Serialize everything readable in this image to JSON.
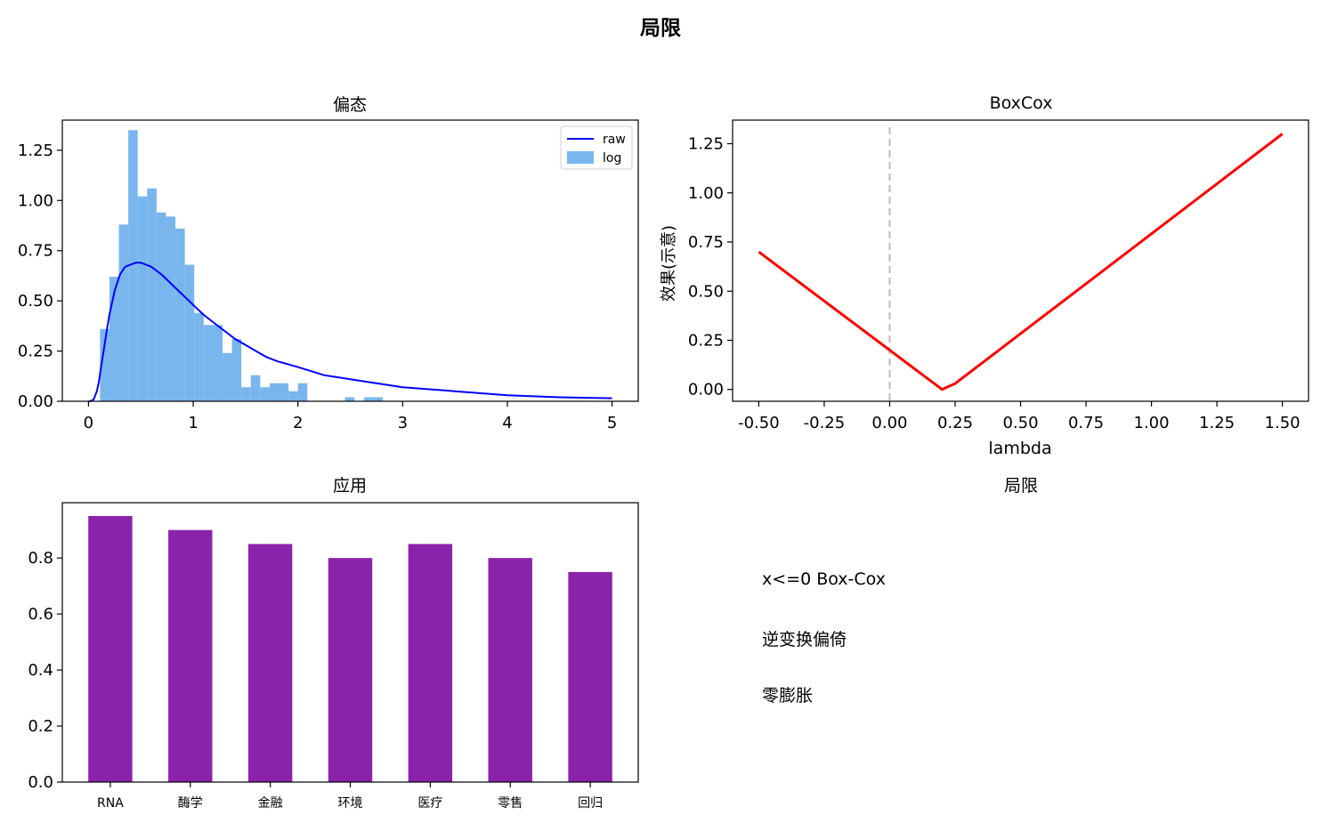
{
  "suptitle": "局限",
  "colors": {
    "hist": "#7ab6ee",
    "curve": "#0000ff",
    "boxcox": "#ff0000",
    "vline": "#bbbbbb",
    "bars": "#8b22ab"
  },
  "chart_data": [
    {
      "type": "bar",
      "subtype": "histogram+line",
      "title": "偏态",
      "xlim": [
        -0.25,
        5.25
      ],
      "ylim": [
        0,
        1.4
      ],
      "xticks": [
        0,
        1,
        2,
        3,
        4,
        5
      ],
      "yticks": [
        "0.00",
        "0.25",
        "0.50",
        "0.75",
        "1.00",
        "1.25"
      ],
      "legend": {
        "placement": "top-right",
        "entries": [
          "raw",
          "log"
        ]
      },
      "histogram": {
        "name": "log",
        "bin_width": 0.09,
        "bins_start": [
          0.11,
          0.2,
          0.29,
          0.38,
          0.47,
          0.56,
          0.65,
          0.74,
          0.83,
          0.92,
          1.01,
          1.1,
          1.19,
          1.28,
          1.37,
          1.46,
          1.55,
          1.64,
          1.73,
          1.82,
          1.91,
          2.0,
          2.45,
          2.63,
          2.72
        ],
        "values": [
          0.36,
          0.62,
          0.88,
          1.35,
          1.02,
          1.06,
          0.94,
          0.92,
          0.86,
          0.68,
          0.44,
          0.38,
          0.38,
          0.24,
          0.31,
          0.07,
          0.13,
          0.07,
          0.09,
          0.09,
          0.05,
          0.09,
          0.02,
          0.02,
          0.02
        ]
      },
      "curve": {
        "name": "raw",
        "x": [
          0,
          0.02,
          0.05,
          0.08,
          0.1,
          0.12,
          0.15,
          0.18,
          0.2,
          0.25,
          0.3,
          0.35,
          0.4,
          0.45,
          0.5,
          0.55,
          0.6,
          0.7,
          0.8,
          0.9,
          1.0,
          1.1,
          1.2,
          1.3,
          1.4,
          1.5,
          1.6,
          1.7,
          1.8,
          2.0,
          2.25,
          2.5,
          2.75,
          3.0,
          3.5,
          4.0,
          4.5,
          5.0
        ],
        "y": [
          0,
          0.0,
          0.01,
          0.05,
          0.1,
          0.17,
          0.27,
          0.37,
          0.43,
          0.55,
          0.63,
          0.67,
          0.68,
          0.69,
          0.69,
          0.68,
          0.67,
          0.63,
          0.58,
          0.53,
          0.48,
          0.43,
          0.39,
          0.35,
          0.31,
          0.28,
          0.25,
          0.22,
          0.2,
          0.17,
          0.13,
          0.11,
          0.09,
          0.07,
          0.05,
          0.03,
          0.02,
          0.015
        ]
      }
    },
    {
      "type": "line",
      "title": "BoxCox",
      "xlabel": "lambda",
      "ylabel": "效果(示意)",
      "xlim": [
        -0.6,
        1.6
      ],
      "ylim": [
        -0.06,
        1.37
      ],
      "xticks": [
        "-0.50",
        "-0.25",
        "0.00",
        "0.25",
        "0.50",
        "0.75",
        "1.00",
        "1.25",
        "1.50"
      ],
      "yticks": [
        "0.00",
        "0.25",
        "0.50",
        "0.75",
        "1.00",
        "1.25"
      ],
      "vline_x": 0,
      "series": [
        {
          "x": [
            -0.5,
            0.2,
            0.25,
            1.5
          ],
          "y": [
            0.7,
            0.0,
            0.03,
            1.3
          ]
        }
      ]
    },
    {
      "type": "bar",
      "title": "应用",
      "categories": [
        "RNA",
        "酶学",
        "金融",
        "环境",
        "医疗",
        "零售",
        "回归"
      ],
      "values": [
        0.95,
        0.9,
        0.85,
        0.8,
        0.85,
        0.8,
        0.75
      ],
      "ylim": [
        0,
        0.9975
      ],
      "yticks": [
        "0.0",
        "0.2",
        "0.4",
        "0.6",
        "0.8"
      ]
    },
    {
      "type": "table",
      "title": "局限",
      "lines": [
        "x<=0 Box-Cox",
        "逆变换偏倚",
        "零膨胀"
      ]
    }
  ]
}
